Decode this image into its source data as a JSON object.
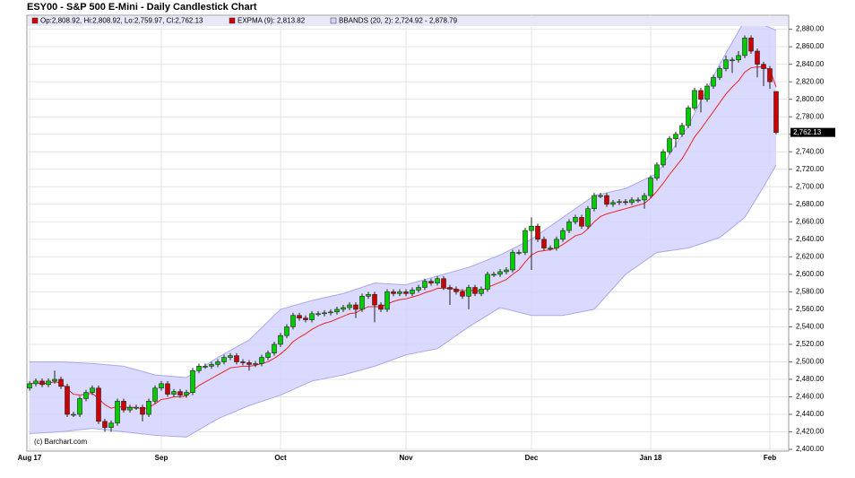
{
  "chart_data": {
    "type": "candlestick",
    "title": "ESY00 - S&P 500 E-Mini - Daily Candlestick Chart",
    "legend": [
      "Op:2,808.92, Hi:2,808.92, Lo:2,759.97, Cl:2,762.13",
      "EXPMA (9): 2,813.82",
      "BBANDS (20, 2): 2,724.92 - 2,878.79"
    ],
    "watermark": "(c) Barchart.com",
    "last_label": "2,762.13",
    "up_color": "#00cc00",
    "down_color": "#cc0000",
    "categories": [
      "Aug 17",
      null,
      null,
      null,
      null,
      null,
      null,
      null,
      null,
      null,
      null,
      null,
      null,
      null,
      null,
      null,
      null,
      null,
      null,
      null,
      null,
      "Sep",
      null,
      null,
      null,
      null,
      null,
      null,
      null,
      null,
      null,
      null,
      null,
      null,
      null,
      null,
      null,
      null,
      null,
      null,
      "Oct",
      null,
      null,
      null,
      null,
      null,
      null,
      null,
      null,
      null,
      null,
      null,
      null,
      null,
      null,
      null,
      null,
      null,
      null,
      null,
      "Nov",
      null,
      null,
      null,
      null,
      null,
      null,
      null,
      null,
      null,
      null,
      null,
      null,
      null,
      null,
      null,
      null,
      null,
      null,
      null,
      "Dec",
      null,
      null,
      null,
      null,
      null,
      null,
      null,
      null,
      null,
      null,
      null,
      null,
      null,
      null,
      null,
      null,
      null,
      null,
      "Jan 18",
      null,
      null,
      null,
      null,
      null,
      null,
      null,
      null,
      null,
      null,
      null,
      null,
      null,
      null,
      null,
      null,
      null,
      null,
      "Feb",
      null
    ],
    "candles": [
      [
        2470,
        2478,
        2467,
        2475
      ],
      [
        2475,
        2481,
        2472,
        2478
      ],
      [
        2478,
        2481,
        2471,
        2474
      ],
      [
        2474,
        2481,
        2471,
        2478
      ],
      [
        2478,
        2490,
        2475,
        2480
      ],
      [
        2480,
        2483,
        2469,
        2472
      ],
      [
        2472,
        2475,
        2437,
        2440
      ],
      [
        2440,
        2443,
        2437,
        2440
      ],
      [
        2440,
        2461,
        2437,
        2458
      ],
      [
        2458,
        2468,
        2455,
        2465
      ],
      [
        2465,
        2473,
        2462,
        2470
      ],
      [
        2470,
        2473,
        2429,
        2432
      ],
      [
        2432,
        2435,
        2420,
        2425
      ],
      [
        2425,
        2433,
        2420,
        2430
      ],
      [
        2430,
        2458,
        2427,
        2455
      ],
      [
        2455,
        2458,
        2442,
        2445
      ],
      [
        2445,
        2451,
        2442,
        2448
      ],
      [
        2448,
        2451,
        2445,
        2448
      ],
      [
        2448,
        2451,
        2432,
        2440
      ],
      [
        2440,
        2458,
        2437,
        2455
      ],
      [
        2455,
        2473,
        2452,
        2470
      ],
      [
        2470,
        2478,
        2467,
        2475
      ],
      [
        2475,
        2478,
        2460,
        2463
      ],
      [
        2463,
        2469,
        2460,
        2466
      ],
      [
        2466,
        2469,
        2459,
        2462
      ],
      [
        2462,
        2468,
        2459,
        2465
      ],
      [
        2465,
        2493,
        2462,
        2490
      ],
      [
        2490,
        2498,
        2487,
        2495
      ],
      [
        2495,
        2498,
        2492,
        2495
      ],
      [
        2495,
        2500,
        2492,
        2497
      ],
      [
        2497,
        2503,
        2494,
        2500
      ],
      [
        2500,
        2508,
        2497,
        2505
      ],
      [
        2505,
        2510,
        2502,
        2507
      ],
      [
        2507,
        2510,
        2497,
        2500
      ],
      [
        2500,
        2503,
        2496,
        2499
      ],
      [
        2499,
        2502,
        2490,
        2497
      ],
      [
        2497,
        2501,
        2494,
        2498
      ],
      [
        2498,
        2508,
        2495,
        2505
      ],
      [
        2505,
        2513,
        2502,
        2510
      ],
      [
        2510,
        2523,
        2507,
        2520
      ],
      [
        2520,
        2533,
        2517,
        2530
      ],
      [
        2530,
        2543,
        2527,
        2540
      ],
      [
        2540,
        2556,
        2537,
        2553
      ],
      [
        2553,
        2556,
        2547,
        2550
      ],
      [
        2550,
        2553,
        2545,
        2548
      ],
      [
        2548,
        2558,
        2545,
        2555
      ],
      [
        2555,
        2558,
        2552,
        2555
      ],
      [
        2555,
        2559,
        2552,
        2556
      ],
      [
        2556,
        2560,
        2553,
        2557
      ],
      [
        2557,
        2563,
        2554,
        2560
      ],
      [
        2560,
        2565,
        2557,
        2562
      ],
      [
        2562,
        2568,
        2559,
        2565
      ],
      [
        2565,
        2568,
        2550,
        2560
      ],
      [
        2560,
        2578,
        2557,
        2575
      ],
      [
        2575,
        2580,
        2572,
        2577
      ],
      [
        2577,
        2580,
        2545,
        2565
      ],
      [
        2565,
        2568,
        2557,
        2560
      ],
      [
        2560,
        2583,
        2557,
        2580
      ],
      [
        2580,
        2583,
        2575,
        2578
      ],
      [
        2578,
        2583,
        2575,
        2580
      ],
      [
        2580,
        2583,
        2575,
        2578
      ],
      [
        2578,
        2585,
        2575,
        2582
      ],
      [
        2582,
        2588,
        2579,
        2585
      ],
      [
        2585,
        2595,
        2582,
        2592
      ],
      [
        2592,
        2595,
        2587,
        2590
      ],
      [
        2590,
        2598,
        2587,
        2595
      ],
      [
        2595,
        2598,
        2582,
        2585
      ],
      [
        2585,
        2588,
        2565,
        2583
      ],
      [
        2583,
        2586,
        2577,
        2580
      ],
      [
        2580,
        2583,
        2572,
        2575
      ],
      [
        2575,
        2588,
        2560,
        2585
      ],
      [
        2585,
        2588,
        2575,
        2578
      ],
      [
        2578,
        2586,
        2575,
        2583
      ],
      [
        2583,
        2603,
        2580,
        2600
      ],
      [
        2600,
        2603,
        2597,
        2600
      ],
      [
        2600,
        2606,
        2597,
        2603
      ],
      [
        2603,
        2608,
        2600,
        2605
      ],
      [
        2605,
        2628,
        2602,
        2625
      ],
      [
        2625,
        2628,
        2622,
        2625
      ],
      [
        2625,
        2653,
        2622,
        2650
      ],
      [
        2650,
        2665,
        2605,
        2655
      ],
      [
        2655,
        2658,
        2637,
        2640
      ],
      [
        2640,
        2643,
        2627,
        2630
      ],
      [
        2630,
        2633,
        2627,
        2630
      ],
      [
        2630,
        2643,
        2627,
        2640
      ],
      [
        2640,
        2653,
        2637,
        2650
      ],
      [
        2650,
        2663,
        2647,
        2660
      ],
      [
        2660,
        2668,
        2657,
        2665
      ],
      [
        2665,
        2668,
        2652,
        2655
      ],
      [
        2655,
        2678,
        2652,
        2675
      ],
      [
        2675,
        2693,
        2672,
        2690
      ],
      [
        2690,
        2693,
        2687,
        2690
      ],
      [
        2690,
        2693,
        2677,
        2680
      ],
      [
        2680,
        2685,
        2677,
        2682
      ],
      [
        2682,
        2686,
        2679,
        2683
      ],
      [
        2683,
        2686,
        2679,
        2682
      ],
      [
        2682,
        2688,
        2679,
        2685
      ],
      [
        2685,
        2688,
        2682,
        2685
      ],
      [
        2685,
        2693,
        2675,
        2690
      ],
      [
        2690,
        2713,
        2687,
        2710
      ],
      [
        2710,
        2728,
        2707,
        2725
      ],
      [
        2725,
        2743,
        2722,
        2740
      ],
      [
        2740,
        2758,
        2737,
        2755
      ],
      [
        2755,
        2763,
        2745,
        2760
      ],
      [
        2760,
        2773,
        2757,
        2770
      ],
      [
        2770,
        2793,
        2767,
        2790
      ],
      [
        2790,
        2813,
        2787,
        2810
      ],
      [
        2810,
        2813,
        2785,
        2800
      ],
      [
        2800,
        2818,
        2797,
        2815
      ],
      [
        2815,
        2828,
        2812,
        2825
      ],
      [
        2825,
        2838,
        2822,
        2835
      ],
      [
        2835,
        2850,
        2832,
        2845
      ],
      [
        2845,
        2848,
        2830,
        2845
      ],
      [
        2845,
        2855,
        2842,
        2850
      ],
      [
        2850,
        2873,
        2847,
        2870
      ],
      [
        2870,
        2873,
        2852,
        2855
      ],
      [
        2855,
        2858,
        2825,
        2840
      ],
      [
        2840,
        2843,
        2815,
        2835
      ],
      [
        2835,
        2838,
        2812,
        2820
      ],
      [
        2808.92,
        2808.92,
        2759.97,
        2762.13
      ]
    ],
    "ema": {
      "color": "#ee2222",
      "values": [
        2475,
        2476,
        2475,
        2476,
        2477,
        2476,
        2469,
        2463,
        2462,
        2463,
        2464,
        2458,
        2451,
        2447,
        2449,
        2448,
        2448,
        2448,
        2446,
        2448,
        2452,
        2457,
        2458,
        2460,
        2460,
        2461,
        2467,
        2473,
        2477,
        2481,
        2485,
        2489,
        2493,
        2494,
        2495,
        2495,
        2496,
        2498,
        2500,
        2504,
        2509,
        2515,
        2523,
        2528,
        2532,
        2537,
        2541,
        2544,
        2546,
        2549,
        2552,
        2555,
        2556,
        2560,
        2563,
        2563,
        2563,
        2566,
        2569,
        2571,
        2572,
        2574,
        2576,
        2579,
        2581,
        2584,
        2584,
        2584,
        2583,
        2581,
        2582,
        2581,
        2581,
        2585,
        2588,
        2591,
        2594,
        2600,
        2605,
        2614,
        2622,
        2626,
        2627,
        2628,
        2630,
        2634,
        2639,
        2644,
        2646,
        2652,
        2660,
        2666,
        2669,
        2671,
        2673,
        2675,
        2677,
        2679,
        2681,
        2687,
        2695,
        2704,
        2714,
        2723,
        2732,
        2744,
        2757,
        2766,
        2776,
        2786,
        2796,
        2806,
        2814,
        2821,
        2831,
        2836,
        2837,
        2837,
        2834,
        2813.82
      ]
    },
    "bands": {
      "fill": "#d4d4ff",
      "line": "#a8a8f0",
      "x": [
        0,
        5,
        10,
        15,
        20,
        25,
        30,
        35,
        40,
        45,
        50,
        55,
        60,
        65,
        70,
        75,
        80,
        85,
        90,
        95,
        100,
        105,
        110,
        114,
        117,
        119
      ],
      "upper": [
        2500,
        2500,
        2498,
        2495,
        2485,
        2482,
        2505,
        2525,
        2560,
        2570,
        2578,
        2590,
        2588,
        2598,
        2608,
        2622,
        2640,
        2665,
        2690,
        2698,
        2715,
        2770,
        2840,
        2890,
        2885,
        2878.79
      ],
      "lower": [
        2418,
        2420,
        2424,
        2420,
        2416,
        2414,
        2435,
        2450,
        2462,
        2478,
        2485,
        2495,
        2508,
        2515,
        2540,
        2562,
        2553,
        2553,
        2560,
        2600,
        2625,
        2630,
        2642,
        2665,
        2700,
        2724.92
      ]
    },
    "ylim": [
      2398,
      2896
    ],
    "yticks": [
      {
        "value": 2400,
        "label": "2,400.00"
      },
      {
        "value": 2420,
        "label": "2,420.00"
      },
      {
        "value": 2440,
        "label": "2,440.00"
      },
      {
        "value": 2460,
        "label": "2,460.00"
      },
      {
        "value": 2480,
        "label": "2,480.00"
      },
      {
        "value": 2500,
        "label": "2,500.00"
      },
      {
        "value": 2520,
        "label": "2,520.00"
      },
      {
        "value": 2540,
        "label": "2,540.00"
      },
      {
        "value": 2560,
        "label": "2,560.00"
      },
      {
        "value": 2580,
        "label": "2,580.00"
      },
      {
        "value": 2600,
        "label": "2,600.00"
      },
      {
        "value": 2620,
        "label": "2,620.00"
      },
      {
        "value": 2640,
        "label": "2,640.00"
      },
      {
        "value": 2660,
        "label": "2,660.00"
      },
      {
        "value": 2680,
        "label": "2,680.00"
      },
      {
        "value": 2700,
        "label": "2,700.00"
      },
      {
        "value": 2720,
        "label": "2,720.00"
      },
      {
        "value": 2740,
        "label": "2,740.00"
      },
      {
        "value": 2760,
        "label": "2,760.00"
      },
      {
        "value": 2780,
        "label": "2,780.00"
      },
      {
        "value": 2800,
        "label": "2,800.00"
      },
      {
        "value": 2820,
        "label": "2,820.00"
      },
      {
        "value": 2840,
        "label": "2,840.00"
      },
      {
        "value": 2860,
        "label": "2,860.00"
      },
      {
        "value": 2880,
        "label": "2,880.00"
      }
    ],
    "grid": true
  }
}
